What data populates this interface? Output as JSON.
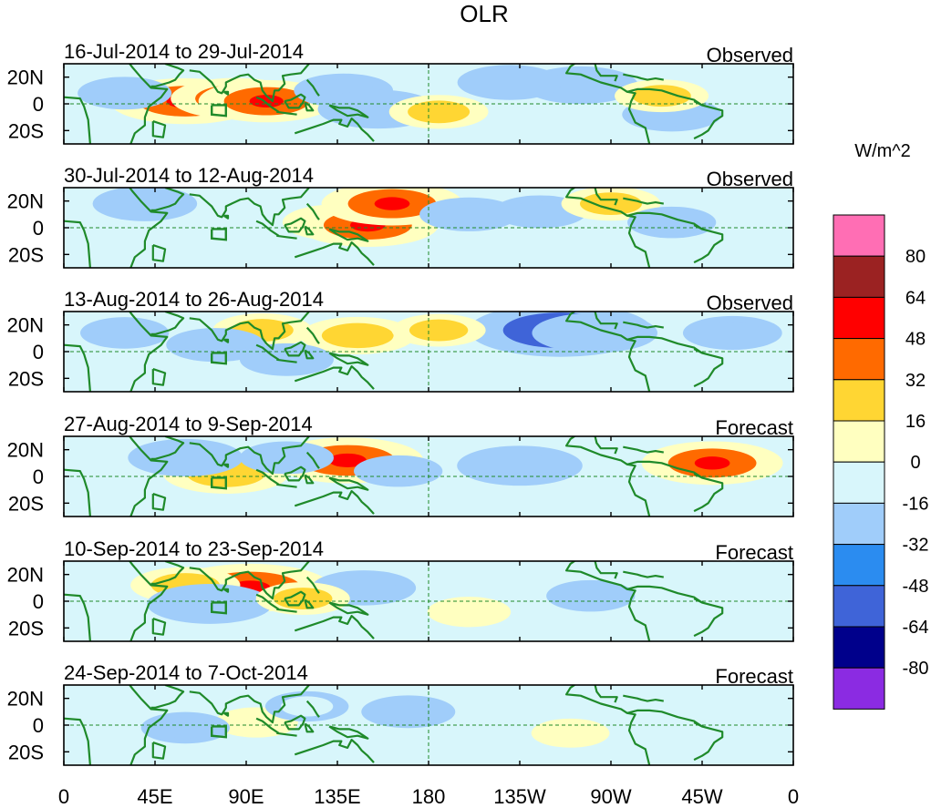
{
  "chart_data": {
    "type": "heatmap",
    "title": "OLR",
    "colorbar": {
      "units": "W/m^2",
      "labels": [
        "80",
        "64",
        "48",
        "32",
        "16",
        "0",
        "-16",
        "-32",
        "-48",
        "-64",
        "-80"
      ],
      "colors": [
        "#ff6eb4",
        "#9b2222",
        "#ff0000",
        "#ff6a00",
        "#ffd633",
        "#ffffc0",
        "#d8f6fb",
        "#a0cdfa",
        "#2b8cf0",
        "#3f64d8",
        "#00008b",
        "#8b2be2"
      ]
    },
    "x_ticks": [
      "0",
      "45E",
      "90E",
      "135E",
      "180",
      "135W",
      "90W",
      "45W",
      "0"
    ],
    "y_ticks": [
      "20N",
      "0",
      "20S"
    ],
    "panels": [
      {
        "date_range": "16-Jul-2014 to 29-Jul-2014",
        "label": "Observed",
        "anomalies": [
          {
            "lon": 60,
            "lat": 2,
            "value": 40
          },
          {
            "lon": 85,
            "lat": 4,
            "value": 32
          },
          {
            "lon": 100,
            "lat": 2,
            "value": 34
          },
          {
            "lon": 138,
            "lat": 10,
            "value": -20
          },
          {
            "lon": 155,
            "lat": -4,
            "value": -28
          },
          {
            "lon": 185,
            "lat": -6,
            "value": 20
          },
          {
            "lon": 255,
            "lat": 14,
            "value": -26
          },
          {
            "lon": 300,
            "lat": -8,
            "value": -20
          },
          {
            "lon": 295,
            "lat": 6,
            "value": 18
          },
          {
            "lon": 220,
            "lat": 16,
            "value": -22
          },
          {
            "lon": 30,
            "lat": 8,
            "value": -18
          }
        ]
      },
      {
        "date_range": "30-Jul-2014 to 12-Aug-2014",
        "label": "Observed",
        "anomalies": [
          {
            "lon": 135,
            "lat": 4,
            "value": 24
          },
          {
            "lon": 150,
            "lat": 2,
            "value": 36
          },
          {
            "lon": 162,
            "lat": 18,
            "value": 36
          },
          {
            "lon": 40,
            "lat": 18,
            "value": -22
          },
          {
            "lon": 200,
            "lat": 10,
            "value": -20
          },
          {
            "lon": 235,
            "lat": 12,
            "value": -18
          },
          {
            "lon": 270,
            "lat": 18,
            "value": 20
          },
          {
            "lon": 300,
            "lat": 4,
            "value": -16
          }
        ]
      },
      {
        "date_range": "13-Aug-2014 to 26-Aug-2014",
        "label": "Observed",
        "anomalies": [
          {
            "lon": 245,
            "lat": 16,
            "value": -52
          },
          {
            "lon": 262,
            "lat": 14,
            "value": -30
          },
          {
            "lon": 145,
            "lat": 12,
            "value": 26
          },
          {
            "lon": 98,
            "lat": 16,
            "value": 20
          },
          {
            "lon": 75,
            "lat": 5,
            "value": -20
          },
          {
            "lon": 110,
            "lat": -6,
            "value": -18
          },
          {
            "lon": 185,
            "lat": 16,
            "value": 18
          },
          {
            "lon": 330,
            "lat": 14,
            "value": -20
          },
          {
            "lon": 30,
            "lat": 14,
            "value": -16
          }
        ]
      },
      {
        "date_range": "27-Aug-2014 to 9-Sep-2014",
        "label": "Forecast",
        "anomalies": [
          {
            "lon": 140,
            "lat": 12,
            "value": 40
          },
          {
            "lon": 80,
            "lat": 2,
            "value": 30
          },
          {
            "lon": 60,
            "lat": 14,
            "value": -26
          },
          {
            "lon": 225,
            "lat": 8,
            "value": -30
          },
          {
            "lon": 320,
            "lat": 10,
            "value": 36
          },
          {
            "lon": 165,
            "lat": 4,
            "value": -16
          },
          {
            "lon": 110,
            "lat": 14,
            "value": -18
          }
        ]
      },
      {
        "date_range": "10-Sep-2014 to 23-Sep-2014",
        "label": "Forecast",
        "anomalies": [
          {
            "lon": 92,
            "lat": 10,
            "value": 44
          },
          {
            "lon": 60,
            "lat": 12,
            "value": 24
          },
          {
            "lon": 72,
            "lat": -2,
            "value": -30
          },
          {
            "lon": 148,
            "lat": 10,
            "value": -22
          },
          {
            "lon": 118,
            "lat": 2,
            "value": 18
          },
          {
            "lon": 260,
            "lat": 4,
            "value": -16
          },
          {
            "lon": 200,
            "lat": -8,
            "value": 14
          }
        ]
      },
      {
        "date_range": "24-Sep-2014 to 7-Oct-2014",
        "label": "Forecast",
        "anomalies": [
          {
            "lon": 170,
            "lat": 10,
            "value": -18
          },
          {
            "lon": 95,
            "lat": 2,
            "value": 14
          },
          {
            "lon": 60,
            "lat": -2,
            "value": -16
          },
          {
            "lon": 250,
            "lat": -6,
            "value": 12
          },
          {
            "lon": 120,
            "lat": 14,
            "value": -14
          }
        ]
      }
    ]
  }
}
